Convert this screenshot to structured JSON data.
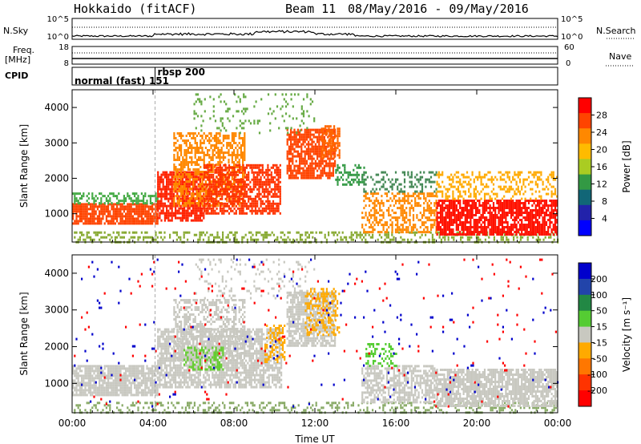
{
  "header": {
    "station": "Hokkaido (fitACF)",
    "beam": "Beam 11",
    "date_range": "08/May/2016 - 09/May/2016"
  },
  "status_panels": {
    "nsky_label": "N.Sky",
    "nsky_ticks": [
      "10^5",
      "10^0"
    ],
    "nsearch_label": "N.Search",
    "nsearch_ticks": [
      "10^5",
      "10^0"
    ],
    "freq_label_line1": "Freq.",
    "freq_label_line2": "[MHz]",
    "freq_ticks": [
      "18",
      "8"
    ],
    "nave_label": "Nave",
    "nave_ticks": [
      "60",
      "0"
    ],
    "cpid_label": "CPID",
    "cpid_segments": [
      {
        "label": "normal (fast) 151",
        "start_hour": 0
      },
      {
        "label": "rbsp 200",
        "start_hour": 4.1
      }
    ]
  },
  "chart_data": [
    {
      "type": "heatmap",
      "name": "power-panel",
      "xlabel": "Time UT",
      "ylabel": "Slant Range [km]",
      "x_ticks": [
        "00:00",
        "04:00",
        "08:00",
        "12:00",
        "16:00",
        "20:00",
        "00:00"
      ],
      "xlim_hours": [
        0,
        24
      ],
      "y_ticks": [
        1000,
        2000,
        3000,
        4000
      ],
      "ylim": [
        200,
        4500
      ],
      "colorbar": {
        "label": "Power [dB]",
        "tick_labels": [
          "28",
          "24",
          "20",
          "16",
          "12",
          "8",
          "4"
        ],
        "range": [
          0,
          30
        ],
        "colors": [
          "#ff0000",
          "#ff4400",
          "#ff8800",
          "#ffbb00",
          "#aacc22",
          "#339944",
          "#116677",
          "#2222aa",
          "#0000ff"
        ]
      },
      "regions": [
        {
          "t0": 0.0,
          "t1": 4.2,
          "r0": 700,
          "r1": 1300,
          "color": "#ff4400",
          "density": 0.85
        },
        {
          "t0": 0.0,
          "t1": 4.2,
          "r0": 1300,
          "r1": 1600,
          "color": "#44aa44",
          "density": 0.5
        },
        {
          "t0": 0.0,
          "t1": 24.0,
          "r0": 200,
          "r1": 500,
          "color": "#88aa33",
          "density": 0.35
        },
        {
          "t0": 4.2,
          "t1": 6.5,
          "r0": 800,
          "r1": 2200,
          "color": "#ff2200",
          "density": 0.8
        },
        {
          "t0": 5.0,
          "t1": 8.5,
          "r0": 1200,
          "r1": 3300,
          "color": "#ff8800",
          "density": 0.55
        },
        {
          "t0": 6.5,
          "t1": 10.3,
          "r0": 1000,
          "r1": 2400,
          "color": "#ff3300",
          "density": 0.7
        },
        {
          "t0": 10.6,
          "t1": 13.0,
          "r0": 2000,
          "r1": 3400,
          "color": "#ff4400",
          "density": 0.75
        },
        {
          "t0": 12.3,
          "t1": 13.2,
          "r0": 2600,
          "r1": 3500,
          "color": "#ff6600",
          "density": 0.6
        },
        {
          "t0": 13.0,
          "t1": 14.5,
          "r0": 1800,
          "r1": 2400,
          "color": "#339944",
          "density": 0.35
        },
        {
          "t0": 14.3,
          "t1": 18.0,
          "r0": 500,
          "r1": 1600,
          "color": "#ff8800",
          "density": 0.45
        },
        {
          "t0": 14.3,
          "t1": 18.0,
          "r0": 1600,
          "r1": 2200,
          "color": "#448855",
          "density": 0.3
        },
        {
          "t0": 18.0,
          "t1": 24.0,
          "r0": 400,
          "r1": 1400,
          "color": "#ff1100",
          "density": 0.8
        },
        {
          "t0": 18.0,
          "t1": 24.0,
          "r0": 1400,
          "r1": 2200,
          "color": "#ffaa00",
          "density": 0.35
        },
        {
          "t0": 6.0,
          "t1": 12.0,
          "r0": 3300,
          "r1": 4400,
          "color": "#66aa44",
          "density": 0.12
        }
      ]
    },
    {
      "type": "heatmap",
      "name": "velocity-panel",
      "xlabel": "Time UT",
      "ylabel": "Slant Range [km]",
      "x_ticks": [
        "00:00",
        "04:00",
        "08:00",
        "12:00",
        "16:00",
        "20:00",
        "00:00"
      ],
      "xlim_hours": [
        0,
        24
      ],
      "y_ticks": [
        1000,
        2000,
        3000,
        4000
      ],
      "ylim": [
        200,
        4500
      ],
      "colorbar": {
        "label": "Velocity [m s⁻¹]",
        "tick_labels": [
          "200",
          "100",
          "50",
          "15",
          "-15",
          "-50",
          "-100",
          "-200"
        ],
        "range": [
          -250,
          250
        ],
        "colors": [
          "#0000cc",
          "#2244aa",
          "#228844",
          "#55cc33",
          "#c8c8c0",
          "#ffaa00",
          "#ff7700",
          "#ff3300",
          "#ff0000"
        ]
      },
      "regions": [
        {
          "t0": 0.0,
          "t1": 4.2,
          "r0": 700,
          "r1": 1500,
          "color": "#c8c8c0",
          "density": 0.85
        },
        {
          "t0": 0.0,
          "t1": 24.0,
          "r0": 200,
          "r1": 500,
          "color": "#88aa66",
          "density": 0.3
        },
        {
          "t0": 4.2,
          "t1": 10.3,
          "r0": 900,
          "r1": 2500,
          "color": "#c8c8c0",
          "density": 0.75
        },
        {
          "t0": 5.0,
          "t1": 8.5,
          "r0": 1600,
          "r1": 3300,
          "color": "#c8c8c0",
          "density": 0.45
        },
        {
          "t0": 5.5,
          "t1": 7.5,
          "r0": 1400,
          "r1": 2000,
          "color": "#66cc33",
          "density": 0.4
        },
        {
          "t0": 9.5,
          "t1": 10.5,
          "r0": 1600,
          "r1": 2600,
          "color": "#ffaa00",
          "density": 0.45
        },
        {
          "t0": 10.6,
          "t1": 13.0,
          "r0": 2000,
          "r1": 3500,
          "color": "#c8c8c0",
          "density": 0.75
        },
        {
          "t0": 11.5,
          "t1": 13.2,
          "r0": 2300,
          "r1": 3600,
          "color": "#ffaa00",
          "density": 0.35
        },
        {
          "t0": 14.3,
          "t1": 18.0,
          "r0": 500,
          "r1": 1500,
          "color": "#c8c8c0",
          "density": 0.6
        },
        {
          "t0": 14.5,
          "t1": 16.0,
          "r0": 1500,
          "r1": 2100,
          "color": "#55cc33",
          "density": 0.35
        },
        {
          "t0": 18.0,
          "t1": 24.0,
          "r0": 400,
          "r1": 1400,
          "color": "#c8c8c0",
          "density": 0.8
        },
        {
          "t0": 6.0,
          "t1": 12.0,
          "r0": 3300,
          "r1": 4400,
          "color": "#c8c8c0",
          "density": 0.12
        },
        {
          "t0": 0.0,
          "t1": 24.0,
          "r0": 400,
          "r1": 4400,
          "color": "#0000cc",
          "density": 0.01
        },
        {
          "t0": 0.0,
          "t1": 24.0,
          "r0": 400,
          "r1": 4400,
          "color": "#ff0000",
          "density": 0.01
        }
      ]
    }
  ]
}
